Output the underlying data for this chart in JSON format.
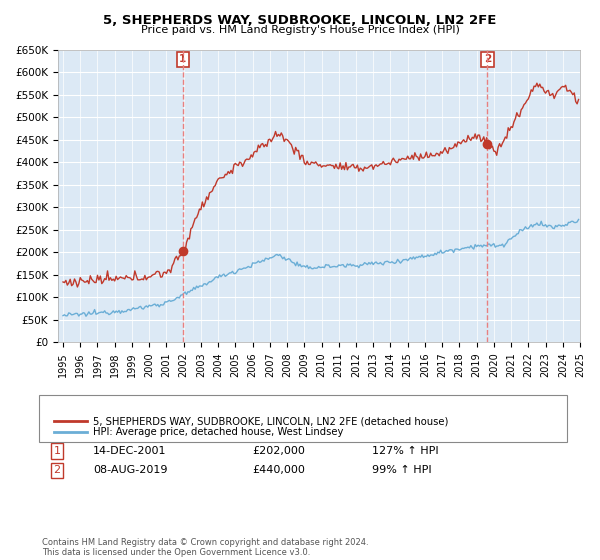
{
  "title": "5, SHEPHERDS WAY, SUDBROOKE, LINCOLN, LN2 2FE",
  "subtitle": "Price paid vs. HM Land Registry's House Price Index (HPI)",
  "ylabel_ticks": [
    "£0",
    "£50K",
    "£100K",
    "£150K",
    "£200K",
    "£250K",
    "£300K",
    "£350K",
    "£400K",
    "£450K",
    "£500K",
    "£550K",
    "£600K",
    "£650K"
  ],
  "ytick_values": [
    0,
    50000,
    100000,
    150000,
    200000,
    250000,
    300000,
    350000,
    400000,
    450000,
    500000,
    550000,
    600000,
    650000
  ],
  "hpi_color": "#6baed6",
  "price_color": "#c0392b",
  "vline_color": "#e88080",
  "marker1_price": 202000,
  "marker1_label": "14-DEC-2001",
  "marker1_value_label": "£202,000",
  "marker1_hpi": "127% ↑ HPI",
  "marker2_price": 440000,
  "marker2_label": "08-AUG-2019",
  "marker2_value_label": "£440,000",
  "marker2_hpi": "99% ↑ HPI",
  "legend_label1": "5, SHEPHERDS WAY, SUDBROOKE, LINCOLN, LN2 2FE (detached house)",
  "legend_label2": "HPI: Average price, detached house, West Lindsey",
  "footnote": "Contains HM Land Registry data © Crown copyright and database right 2024.\nThis data is licensed under the Open Government Licence v3.0.",
  "xmin": 1995,
  "xmax": 2025,
  "ymin": 0,
  "ymax": 650000,
  "plot_bg_color": "#dce9f5",
  "background_color": "#ffffff",
  "grid_color": "#ffffff"
}
